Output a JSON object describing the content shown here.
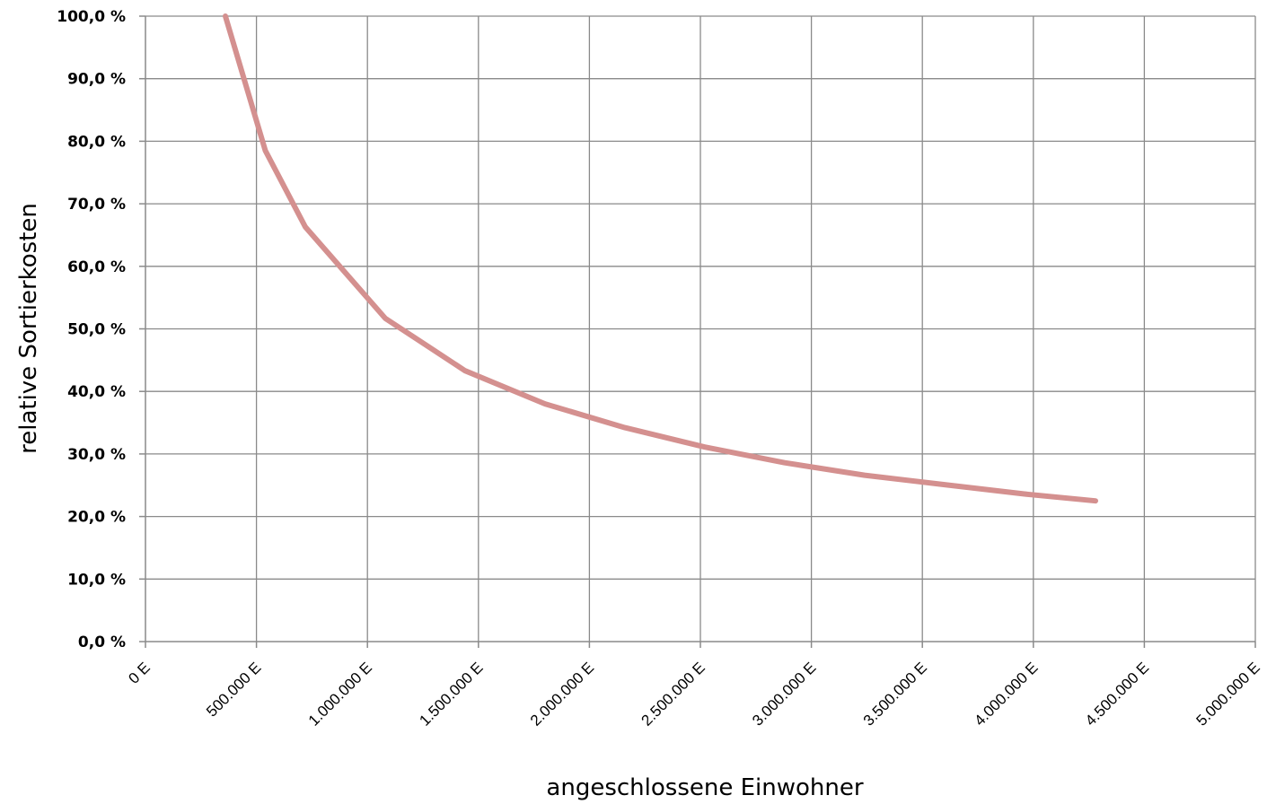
{
  "chart_data": {
    "type": "line",
    "title": "",
    "xlabel": "angeschlossene Einwohner",
    "ylabel": "relative Sortierkosten",
    "xlim": [
      0,
      5000000
    ],
    "ylim": [
      0,
      100
    ],
    "grid": true,
    "x_tick_values": [
      0,
      500000,
      1000000,
      1500000,
      2000000,
      2500000,
      3000000,
      3500000,
      4000000,
      4500000,
      5000000
    ],
    "x_tick_labels": [
      "0 E",
      "500.000 E",
      "1.000.000 E",
      "1.500.000 E",
      "2.000.000 E",
      "2.500.000 E",
      "3.000.000 E",
      "3.500.000 E",
      "4.000.000 E",
      "4.500.000 E",
      "5.000.000 E"
    ],
    "y_tick_values": [
      0,
      10,
      20,
      30,
      40,
      50,
      60,
      70,
      80,
      90,
      100
    ],
    "y_tick_labels": [
      "0,0 %",
      "10,0 %",
      "20,0 %",
      "30,0 %",
      "40,0 %",
      "50,0 %",
      "60,0 %",
      "70,0 %",
      "80,0 %",
      "90,0 %",
      "100,0 %"
    ],
    "series": [
      {
        "color": "#d4908f",
        "x": [
          360000,
          540000,
          720000,
          1080000,
          1440000,
          1800000,
          2160000,
          2520000,
          2880000,
          3240000,
          3600000,
          3960000,
          4280000
        ],
        "y": [
          100.0,
          78.5,
          66.3,
          51.7,
          43.3,
          38.0,
          34.2,
          31.1,
          28.6,
          26.6,
          25.1,
          23.6,
          22.5
        ]
      }
    ]
  }
}
